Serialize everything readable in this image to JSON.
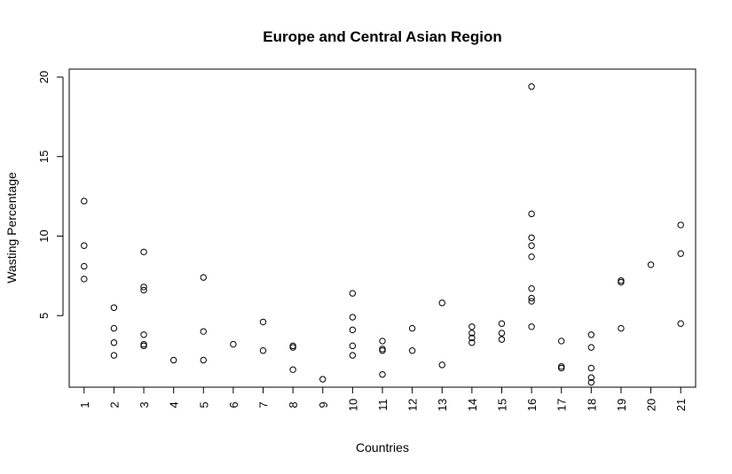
{
  "chart_data": {
    "type": "scatter",
    "title": "Europe and Central Asian Region",
    "xlabel": "Countries",
    "ylabel": "Wasting Percentage",
    "x_ticks": [
      "1",
      "2",
      "3",
      "4",
      "5",
      "6",
      "7",
      "8",
      "9",
      "10",
      "11",
      "12",
      "13",
      "14",
      "15",
      "16",
      "17",
      "18",
      "19",
      "20",
      "21"
    ],
    "y_ticks": [
      5,
      10,
      15,
      20
    ],
    "xlim": [
      0.5,
      21.5
    ],
    "ylim": [
      0.5,
      20.5
    ],
    "grid": false,
    "legend": "none",
    "points": [
      {
        "x": 1,
        "y": 12.2
      },
      {
        "x": 1,
        "y": 9.4
      },
      {
        "x": 1,
        "y": 8.1
      },
      {
        "x": 1,
        "y": 7.3
      },
      {
        "x": 2,
        "y": 5.5
      },
      {
        "x": 2,
        "y": 4.2
      },
      {
        "x": 2,
        "y": 3.3
      },
      {
        "x": 2,
        "y": 2.5
      },
      {
        "x": 3,
        "y": 9.0
      },
      {
        "x": 3,
        "y": 6.8
      },
      {
        "x": 3,
        "y": 6.6
      },
      {
        "x": 3,
        "y": 3.8
      },
      {
        "x": 3,
        "y": 3.2
      },
      {
        "x": 3,
        "y": 3.1
      },
      {
        "x": 4,
        "y": 2.2
      },
      {
        "x": 5,
        "y": 7.4
      },
      {
        "x": 5,
        "y": 4.0
      },
      {
        "x": 5,
        "y": 2.2
      },
      {
        "x": 6,
        "y": 3.2
      },
      {
        "x": 7,
        "y": 4.6
      },
      {
        "x": 7,
        "y": 2.8
      },
      {
        "x": 8,
        "y": 3.1
      },
      {
        "x": 8,
        "y": 3.0
      },
      {
        "x": 8,
        "y": 1.6
      },
      {
        "x": 9,
        "y": 1.0
      },
      {
        "x": 10,
        "y": 6.4
      },
      {
        "x": 10,
        "y": 4.9
      },
      {
        "x": 10,
        "y": 4.1
      },
      {
        "x": 10,
        "y": 3.1
      },
      {
        "x": 10,
        "y": 2.5
      },
      {
        "x": 11,
        "y": 3.4
      },
      {
        "x": 11,
        "y": 2.9
      },
      {
        "x": 11,
        "y": 2.8
      },
      {
        "x": 11,
        "y": 1.3
      },
      {
        "x": 12,
        "y": 4.2
      },
      {
        "x": 12,
        "y": 2.8
      },
      {
        "x": 13,
        "y": 5.8
      },
      {
        "x": 13,
        "y": 1.9
      },
      {
        "x": 14,
        "y": 4.3
      },
      {
        "x": 14,
        "y": 3.9
      },
      {
        "x": 14,
        "y": 3.6
      },
      {
        "x": 14,
        "y": 3.3
      },
      {
        "x": 15,
        "y": 4.5
      },
      {
        "x": 15,
        "y": 3.9
      },
      {
        "x": 15,
        "y": 3.5
      },
      {
        "x": 16,
        "y": 19.4
      },
      {
        "x": 16,
        "y": 11.4
      },
      {
        "x": 16,
        "y": 9.9
      },
      {
        "x": 16,
        "y": 9.4
      },
      {
        "x": 16,
        "y": 8.7
      },
      {
        "x": 16,
        "y": 6.7
      },
      {
        "x": 16,
        "y": 6.1
      },
      {
        "x": 16,
        "y": 5.9
      },
      {
        "x": 16,
        "y": 4.3
      },
      {
        "x": 17,
        "y": 3.4
      },
      {
        "x": 17,
        "y": 1.8
      },
      {
        "x": 17,
        "y": 1.7
      },
      {
        "x": 18,
        "y": 3.8
      },
      {
        "x": 18,
        "y": 3.0
      },
      {
        "x": 18,
        "y": 1.7
      },
      {
        "x": 18,
        "y": 1.1
      },
      {
        "x": 18,
        "y": 0.8
      },
      {
        "x": 19,
        "y": 7.2
      },
      {
        "x": 19,
        "y": 7.1
      },
      {
        "x": 19,
        "y": 4.2
      },
      {
        "x": 20,
        "y": 8.2
      },
      {
        "x": 21,
        "y": 10.7
      },
      {
        "x": 21,
        "y": 8.9
      },
      {
        "x": 21,
        "y": 4.5
      }
    ]
  }
}
